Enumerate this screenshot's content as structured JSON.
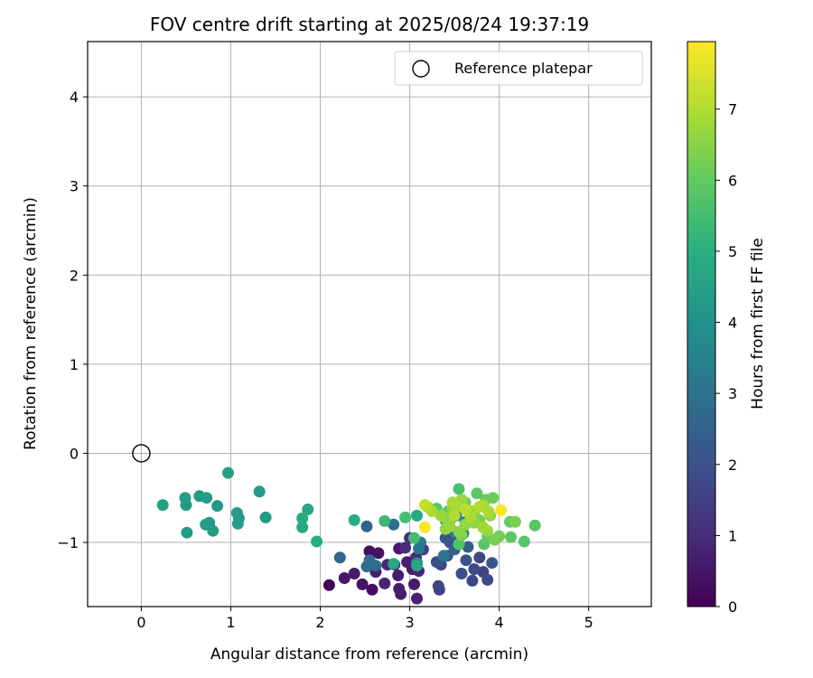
{
  "chart_data": {
    "type": "scatter",
    "title": "FOV centre drift starting at 2025/08/24 19:37:19",
    "xlabel": "Angular distance from reference (arcmin)",
    "ylabel": "Rotation from reference (arcmin)",
    "xlim": [
      -0.6,
      5.7
    ],
    "ylim": [
      -1.72,
      4.62
    ],
    "xticks": [
      "0",
      "1",
      "2",
      "3",
      "4",
      "5"
    ],
    "xtick_values": [
      0,
      1,
      2,
      3,
      4,
      5
    ],
    "yticks": [
      "−1",
      "0",
      "1",
      "2",
      "3",
      "4"
    ],
    "ytick_values": [
      -1,
      0,
      1,
      2,
      3,
      4
    ],
    "grid": true,
    "legend": {
      "position": "top-right",
      "entries": [
        "Reference platepar"
      ]
    },
    "reference_point": {
      "label": "Reference platepar",
      "x": 0,
      "y": 0,
      "marker": "open-circle"
    },
    "colorbar": {
      "label": "Hours from first FF file",
      "colormap": "viridis",
      "range": [
        0,
        7.95
      ],
      "ticks": [
        "0",
        "1",
        "2",
        "3",
        "4",
        "5",
        "6",
        "7"
      ],
      "tick_values": [
        0,
        1,
        2,
        3,
        4,
        5,
        6,
        7
      ]
    },
    "series": [
      {
        "points": [
          [
            2.1,
            -1.48,
            0.1
          ],
          [
            2.27,
            -1.4,
            0.5
          ],
          [
            2.47,
            -1.47,
            0.4
          ],
          [
            2.58,
            -1.53,
            0.3
          ],
          [
            2.38,
            -1.35,
            0.6
          ],
          [
            2.55,
            -1.1,
            0.3
          ],
          [
            2.65,
            -1.12,
            0.4
          ],
          [
            2.62,
            -1.33,
            0.7
          ],
          [
            2.72,
            -1.46,
            0.8
          ],
          [
            2.88,
            -1.07,
            0.5
          ],
          [
            2.87,
            -1.37,
            0.6
          ],
          [
            2.88,
            -1.52,
            0.6
          ],
          [
            2.9,
            -1.58,
            0.7
          ],
          [
            2.75,
            -1.25,
            0.9
          ],
          [
            3.03,
            -1.3,
            0.6
          ],
          [
            3.05,
            -1.47,
            0.6
          ],
          [
            3.08,
            -1.63,
            0.8
          ],
          [
            2.83,
            -1.25,
            0.6
          ],
          [
            2.95,
            -1.06,
            1.0
          ],
          [
            3.0,
            -0.95,
            1.1
          ],
          [
            3.07,
            -1.17,
            0.9
          ],
          [
            3.1,
            -1.32,
            0.8
          ],
          [
            2.97,
            -1.22,
            0.7
          ],
          [
            3.15,
            -1.08,
            1.5
          ],
          [
            3.35,
            -1.25,
            1.7
          ],
          [
            3.32,
            -1.49,
            1.6
          ],
          [
            3.33,
            -1.53,
            1.5
          ],
          [
            3.3,
            -1.22,
            1.9
          ],
          [
            3.42,
            -1.15,
            2.0
          ],
          [
            3.4,
            -0.95,
            2.1
          ],
          [
            3.45,
            -1.0,
            2.0
          ],
          [
            3.63,
            -1.2,
            2.0
          ],
          [
            3.58,
            -1.35,
            1.9
          ],
          [
            3.7,
            -1.43,
            1.7
          ],
          [
            3.72,
            -1.3,
            1.8
          ],
          [
            3.78,
            -1.17,
            1.7
          ],
          [
            3.82,
            -1.33,
            1.6
          ],
          [
            3.87,
            -1.42,
            1.8
          ],
          [
            3.92,
            -1.23,
            2.1
          ],
          [
            3.5,
            -1.08,
            2.3
          ],
          [
            3.55,
            -0.95,
            2.5
          ],
          [
            3.65,
            -1.05,
            2.4
          ],
          [
            2.22,
            -1.17,
            2.6
          ],
          [
            2.52,
            -1.27,
            2.8
          ],
          [
            2.55,
            -1.2,
            2.8
          ],
          [
            2.52,
            -0.82,
            2.5
          ],
          [
            2.62,
            -1.26,
            2.8
          ],
          [
            2.82,
            -0.8,
            2.9
          ],
          [
            3.12,
            -1.0,
            3.2
          ],
          [
            3.08,
            -1.23,
            3.7
          ],
          [
            3.1,
            -1.07,
            3.2
          ],
          [
            3.38,
            -1.15,
            3.2
          ],
          [
            3.4,
            -0.75,
            3.5
          ],
          [
            3.47,
            -0.68,
            3.4
          ],
          [
            3.52,
            -0.7,
            3.3
          ],
          [
            3.62,
            -0.77,
            3.6
          ],
          [
            3.6,
            -0.9,
            3.8
          ],
          [
            3.5,
            -0.88,
            3.5
          ],
          [
            3.55,
            -0.58,
            4.6
          ],
          [
            0.24,
            -0.58,
            4.5
          ],
          [
            0.49,
            -0.5,
            4.4
          ],
          [
            0.5,
            -0.58,
            4.3
          ],
          [
            0.51,
            -0.89,
            4.3
          ],
          [
            0.65,
            -0.48,
            4.3
          ],
          [
            0.73,
            -0.5,
            4.4
          ],
          [
            0.72,
            -0.8,
            4.4
          ],
          [
            0.76,
            -0.78,
            4.3
          ],
          [
            0.8,
            -0.87,
            4.4
          ],
          [
            0.85,
            -0.59,
            4.3
          ],
          [
            0.97,
            -0.22,
            4.5
          ],
          [
            1.07,
            -0.67,
            4.4
          ],
          [
            1.08,
            -0.79,
            4.4
          ],
          [
            1.09,
            -0.73,
            4.3
          ],
          [
            1.32,
            -0.43,
            4.3
          ],
          [
            1.39,
            -0.72,
            4.3
          ],
          [
            1.8,
            -0.73,
            4.8
          ],
          [
            1.8,
            -0.83,
            4.7
          ],
          [
            1.86,
            -0.63,
            4.7
          ],
          [
            1.96,
            -0.99,
            4.9
          ],
          [
            2.38,
            -0.75,
            4.9
          ],
          [
            2.82,
            -1.24,
            4.8
          ],
          [
            3.08,
            -1.26,
            4.7
          ],
          [
            3.08,
            -0.7,
            4.8
          ],
          [
            3.45,
            -0.75,
            4.9
          ],
          [
            2.72,
            -0.76,
            5.3
          ],
          [
            2.95,
            -0.72,
            5.5
          ],
          [
            3.05,
            -0.95,
            5.5
          ],
          [
            3.3,
            -0.62,
            5.8
          ],
          [
            3.43,
            -0.65,
            5.9
          ],
          [
            3.55,
            -0.4,
            5.6
          ],
          [
            3.55,
            -1.02,
            5.7
          ],
          [
            3.62,
            -0.55,
            6.1
          ],
          [
            3.75,
            -0.45,
            5.9
          ],
          [
            3.85,
            -0.52,
            6.1
          ],
          [
            3.93,
            -0.5,
            6.1
          ],
          [
            3.83,
            -1.02,
            5.8
          ],
          [
            3.87,
            -0.93,
            6.0
          ],
          [
            3.95,
            -0.97,
            6.3
          ],
          [
            4.0,
            -0.93,
            6.2
          ],
          [
            4.13,
            -0.94,
            5.9
          ],
          [
            4.28,
            -0.99,
            5.8
          ],
          [
            4.4,
            -0.81,
            5.8
          ],
          [
            4.12,
            -0.77,
            6.0
          ],
          [
            4.18,
            -0.77,
            6.3
          ],
          [
            3.72,
            -0.7,
            6.4
          ],
          [
            3.78,
            -0.75,
            6.3
          ],
          [
            3.17,
            -0.58,
            7.2
          ],
          [
            3.2,
            -0.6,
            7.0
          ],
          [
            3.25,
            -0.65,
            6.9
          ],
          [
            3.35,
            -0.7,
            6.7
          ],
          [
            3.4,
            -0.73,
            6.6
          ],
          [
            3.48,
            -0.55,
            6.9
          ],
          [
            3.52,
            -0.6,
            6.8
          ],
          [
            3.58,
            -0.52,
            6.7
          ],
          [
            3.45,
            -0.82,
            6.7
          ],
          [
            3.4,
            -0.85,
            6.6
          ],
          [
            3.55,
            -0.88,
            6.5
          ],
          [
            3.62,
            -0.8,
            6.6
          ],
          [
            3.68,
            -0.72,
            6.9
          ],
          [
            3.7,
            -0.65,
            6.8
          ],
          [
            3.78,
            -0.6,
            7.0
          ],
          [
            3.82,
            -0.58,
            6.8
          ],
          [
            3.88,
            -0.65,
            6.9
          ],
          [
            3.9,
            -0.7,
            6.7
          ],
          [
            3.72,
            -0.78,
            6.6
          ],
          [
            3.58,
            -0.92,
            6.4
          ],
          [
            3.62,
            -0.63,
            7.1
          ],
          [
            3.5,
            -0.7,
            7.0
          ],
          [
            3.82,
            -0.83,
            6.8
          ],
          [
            3.87,
            -0.87,
            6.7
          ],
          [
            3.48,
            -0.62,
            6.6
          ],
          [
            3.17,
            -0.83,
            7.9
          ],
          [
            4.02,
            -0.64,
            7.9
          ]
        ]
      }
    ]
  }
}
